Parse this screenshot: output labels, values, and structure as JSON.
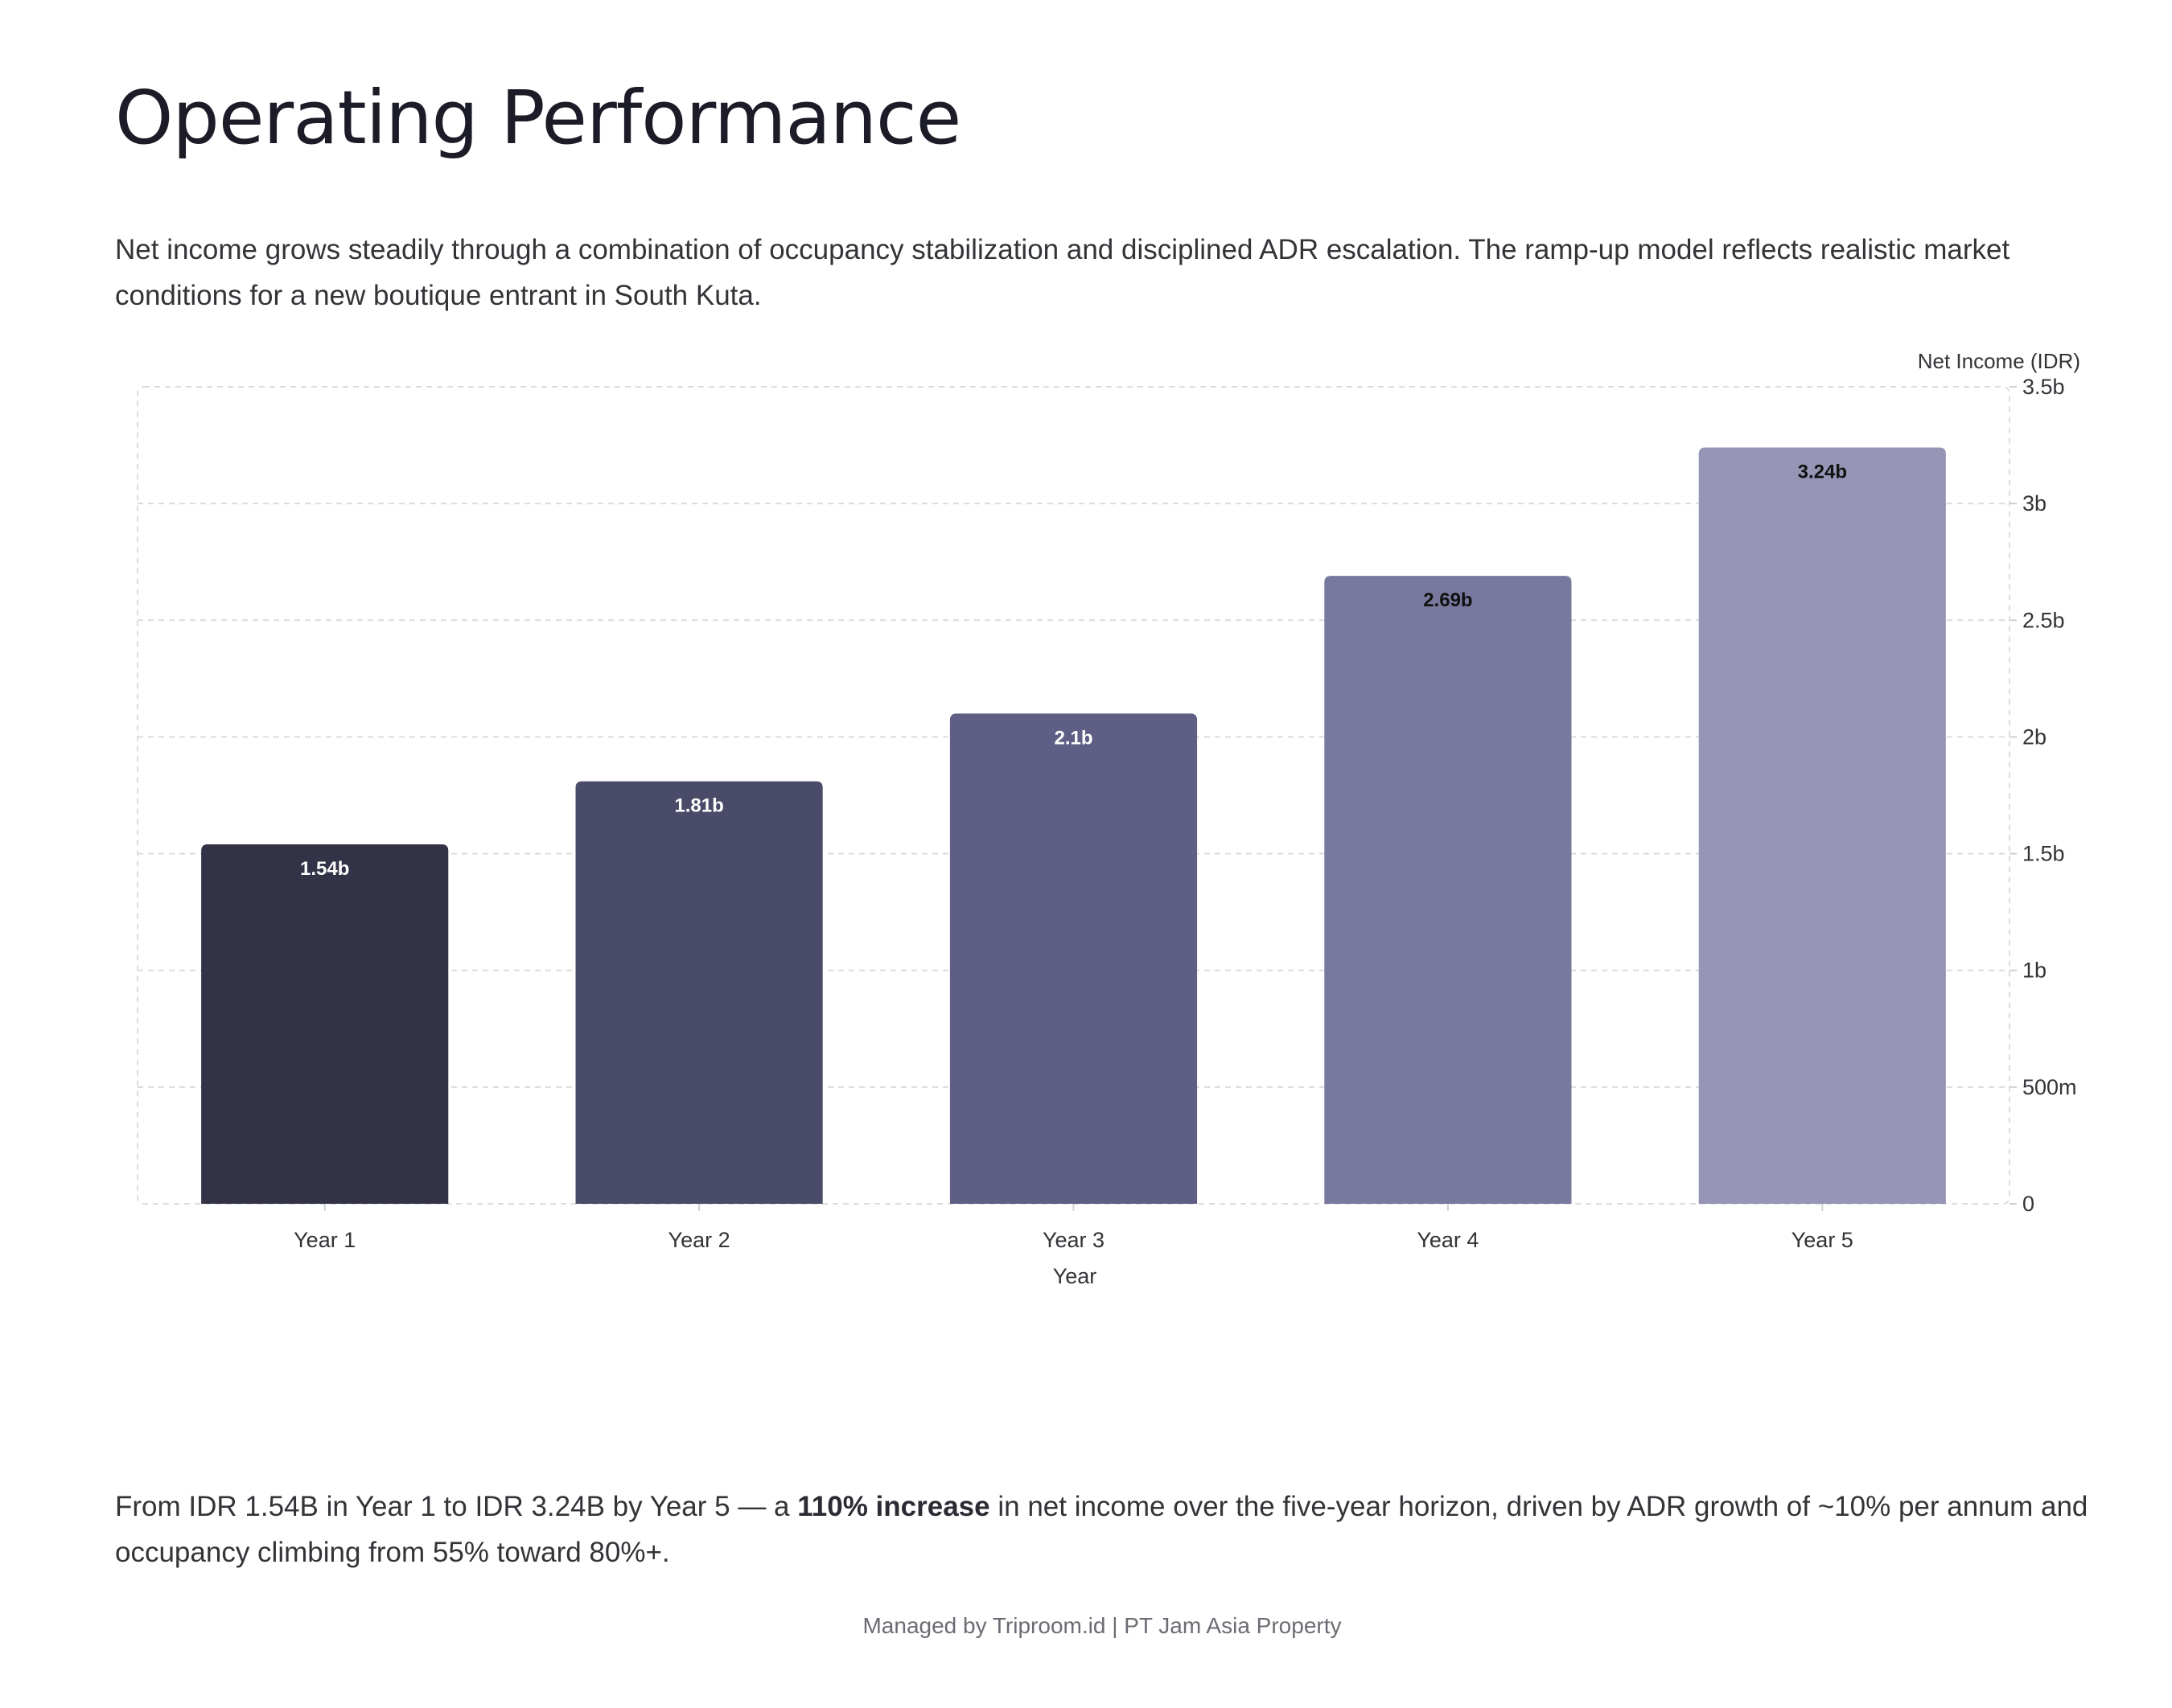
{
  "page": {
    "title": "Operating Performance",
    "intro": "Net income grows steadily through a combination of occupancy stabilization and disciplined ADR escalation. The ramp-up model reflects realistic market conditions for a new boutique entrant in South Kuta.",
    "summary": {
      "before": "From IDR 1.54B in Year 1 to IDR 3.24B by Year 5 — a ",
      "bold": "110% increase",
      "after": " in net income over the five-year horizon, driven by ADR growth of ~10% per annum and occupancy climbing from 55% toward 80%+."
    },
    "footer": "Managed by Triproom.id | PT Jam Asia Property"
  },
  "chart_data": {
    "type": "bar",
    "categories": [
      "Year 1",
      "Year 2",
      "Year 3",
      "Year 4",
      "Year 5"
    ],
    "values": [
      1540000000,
      1810000000,
      2100000000,
      2690000000,
      3240000000
    ],
    "data_labels": [
      "1.54b",
      "1.81b",
      "2.1b",
      "2.69b",
      "3.24b"
    ],
    "bar_colors": [
      "#333348",
      "#4a4a69",
      "#5f5e84",
      "#79789e",
      "#9695b5"
    ],
    "label_colors": [
      "#ffffff",
      "#ffffff",
      "#ffffff",
      "#111111",
      "#111111"
    ],
    "xlabel": "Year",
    "ylabel": "Net Income (IDR)",
    "ylim": [
      0,
      3500000000
    ],
    "yticks": [
      0,
      500000000,
      1000000000,
      1500000000,
      2000000000,
      2500000000,
      3000000000,
      3500000000
    ],
    "ytick_labels": [
      "0",
      "500m",
      "1b",
      "1.5b",
      "2b",
      "2.5b",
      "3b",
      "3.5b"
    ],
    "y_axis_position": "right",
    "grid": true,
    "grid_color": "#dcdcdc"
  }
}
